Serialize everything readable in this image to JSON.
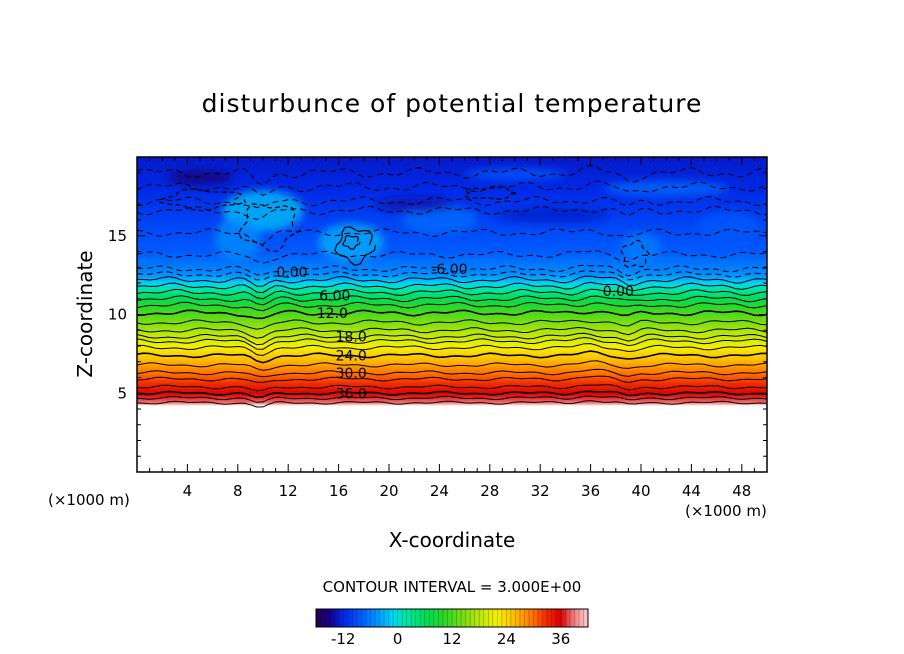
{
  "chart_data": {
    "type": "heatmap",
    "title": "disturbunce of potential temperature",
    "xlabel": "X-coordinate",
    "ylabel": "Z-coordinate",
    "x_unit": "(×1000 m)",
    "x_unit_right": "(×1000 m)",
    "xlim": [
      0,
      50
    ],
    "ylim": [
      0,
      20
    ],
    "x_ticks": [
      4,
      8,
      12,
      16,
      20,
      24,
      28,
      32,
      36,
      40,
      44,
      48
    ],
    "x_tick_labels": [
      "4",
      "8",
      "12",
      "16",
      "20",
      "24",
      "28",
      "32",
      "36",
      "40",
      "44",
      "48"
    ],
    "y_ticks": [
      5,
      10,
      15
    ],
    "y_tick_labels": [
      "5",
      "10",
      "15"
    ],
    "contour_interval_text": "CONTOUR INTERVAL = 3.000E+00",
    "contour_interval": 3.0,
    "colorbar": {
      "range": [
        -18,
        42
      ],
      "tick_values": [
        -12,
        0,
        12,
        24,
        36
      ],
      "tick_labels": [
        "-12",
        "0",
        "12",
        "24",
        "36"
      ]
    },
    "field_profile": {
      "z": [
        0,
        4.2,
        4.5,
        6,
        7.5,
        9,
        10.5,
        11.7,
        12.5,
        14,
        16,
        18,
        20
      ],
      "value": [
        null,
        40,
        38,
        31,
        24,
        17,
        10,
        1,
        -5,
        -8,
        -10,
        -12,
        -13
      ]
    },
    "contour_labels": [
      {
        "text": "0.00",
        "x": 12.3,
        "z": 12.7
      },
      {
        "text": "6.00",
        "x": 15.7,
        "z": 11.2
      },
      {
        "text": "12.0",
        "x": 15.5,
        "z": 10.1
      },
      {
        "text": "-6.00",
        "x": 24.8,
        "z": 12.9
      },
      {
        "text": "0.00",
        "x": 38.2,
        "z": 11.5
      },
      {
        "text": "18.0",
        "x": 17.0,
        "z": 8.6
      },
      {
        "text": "24.0",
        "x": 17.0,
        "z": 7.4
      },
      {
        "text": "30.0",
        "x": 17.0,
        "z": 6.3
      },
      {
        "text": "36.0",
        "x": 17.0,
        "z": 5.0
      }
    ]
  }
}
